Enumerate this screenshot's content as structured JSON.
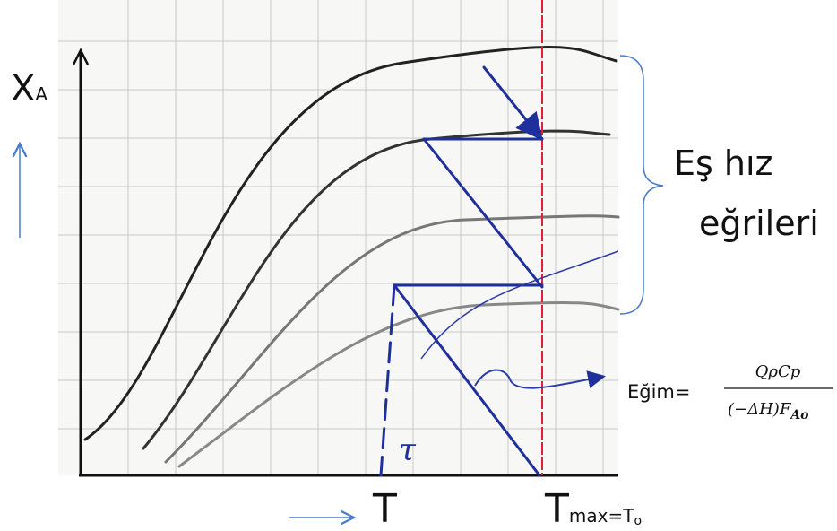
{
  "y_axis_label": {
    "symbol": "X",
    "subscript": "A"
  },
  "rate_curves_label": {
    "line1": "Eş hız",
    "line2": "eğrileri"
  },
  "slope": {
    "label": "Eğim=",
    "numerator": "QρCp",
    "denominator": "(−ΔH)F",
    "denominator_subscript": "Ao"
  },
  "tau": "τ",
  "x_axis_labels": {
    "t": "T",
    "tmax": {
      "symbol": "T",
      "subscript": "max",
      "equals": "=T",
      "equals_subscript": "o"
    }
  }
}
